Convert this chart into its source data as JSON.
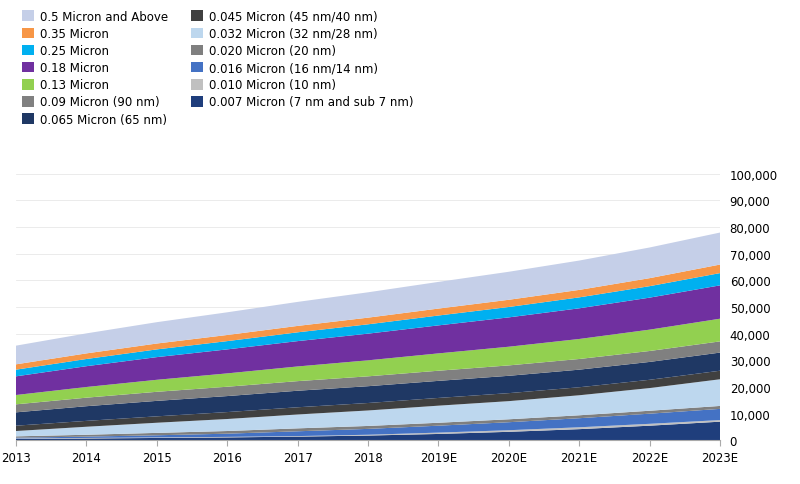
{
  "years": [
    "2013",
    "2014",
    "2015",
    "2016",
    "2017",
    "2018",
    "2019E",
    "2020E",
    "2021E",
    "2022E",
    "2023E"
  ],
  "series_bottom_to_top": [
    {
      "label": "0.007 Micron (7 nm and sub 7 nm)",
      "color": "#1f3e7c",
      "values": [
        500,
        700,
        900,
        1100,
        1400,
        1800,
        2400,
        3200,
        4200,
        5500,
        7000
      ]
    },
    {
      "label": "0.010 Micron (10 nm)",
      "color": "#c0c0c0",
      "values": [
        200,
        200,
        200,
        200,
        200,
        300,
        500,
        600,
        700,
        700,
        600
      ]
    },
    {
      "label": "0.016 Micron (16 nm/14 nm)",
      "color": "#4472c4",
      "values": [
        300,
        500,
        800,
        1200,
        1800,
        2200,
        2600,
        3000,
        3400,
        3800,
        4200
      ]
    },
    {
      "label": "0.020 Micron (20 nm)",
      "color": "#7f7f7f",
      "values": [
        500,
        700,
        900,
        1000,
        1100,
        1100,
        1100,
        1100,
        1100,
        1100,
        1100
      ]
    },
    {
      "label": "0.032 Micron (32 nm/28 nm)",
      "color": "#bdd7ee",
      "values": [
        2000,
        3000,
        3800,
        4500,
        5200,
        5800,
        6400,
        6800,
        7500,
        8500,
        10000
      ]
    },
    {
      "label": "0.045 Micron (45 nm/40 nm)",
      "color": "#404040",
      "values": [
        2000,
        2200,
        2400,
        2600,
        2700,
        2800,
        2900,
        3000,
        3000,
        3100,
        3200
      ]
    },
    {
      "label": "0.065 Micron (65 nm)",
      "color": "#1f3864",
      "values": [
        5000,
        5500,
        5800,
        6000,
        6200,
        6300,
        6400,
        6500,
        6600,
        6700,
        6800
      ]
    },
    {
      "label": "0.09 Micron (90 nm)",
      "color": "#808080",
      "values": [
        3000,
        3200,
        3400,
        3500,
        3600,
        3700,
        3800,
        3900,
        4000,
        4100,
        4200
      ]
    },
    {
      "label": "0.13 Micron",
      "color": "#92d050",
      "values": [
        3500,
        4000,
        4500,
        5000,
        5500,
        6000,
        6500,
        7000,
        7500,
        8000,
        8500
      ]
    },
    {
      "label": "0.18 Micron",
      "color": "#7030a0",
      "values": [
        7000,
        7800,
        8500,
        9000,
        9500,
        10000,
        10500,
        11000,
        11500,
        12000,
        12500
      ]
    },
    {
      "label": "0.25 Micron",
      "color": "#00b0f0",
      "values": [
        2500,
        2700,
        2900,
        3100,
        3300,
        3500,
        3700,
        3900,
        4100,
        4300,
        4600
      ]
    },
    {
      "label": "0.35 Micron",
      "color": "#f79646",
      "values": [
        2000,
        2100,
        2200,
        2300,
        2400,
        2500,
        2600,
        2700,
        2800,
        3000,
        3200
      ]
    },
    {
      "label": "0.5 Micron and Above",
      "color": "#c5cfe8",
      "values": [
        7000,
        7500,
        8000,
        8500,
        9000,
        9500,
        10000,
        10500,
        11000,
        11500,
        12000
      ]
    }
  ],
  "legend_left_col": [
    "0.5 Micron and Above",
    "0.25 Micron",
    "0.13 Micron",
    "0.065 Micron (65 nm)",
    "0.032 Micron (32 nm/28 nm)",
    "0.016 Micron (16 nm/14 nm)",
    "0.007 Micron (7 nm and sub 7 nm)"
  ],
  "legend_right_col": [
    "0.35 Micron",
    "0.18 Micron",
    "0.09 Micron (90 nm)",
    "0.045 Micron (45 nm/40 nm)",
    "0.020 Micron (20 nm)",
    "0.010 Micron (10 nm)"
  ],
  "ylim": [
    0,
    100000
  ],
  "yticks": [
    0,
    10000,
    20000,
    30000,
    40000,
    50000,
    60000,
    70000,
    80000,
    90000,
    100000
  ],
  "ytick_labels": [
    "0",
    "10,000",
    "20,000",
    "30,000",
    "40,000",
    "50,000",
    "60,000",
    "70,000",
    "80,000",
    "90,000",
    "100,000"
  ],
  "bg_color": "#ffffff",
  "legend_fontsize": 8.5
}
